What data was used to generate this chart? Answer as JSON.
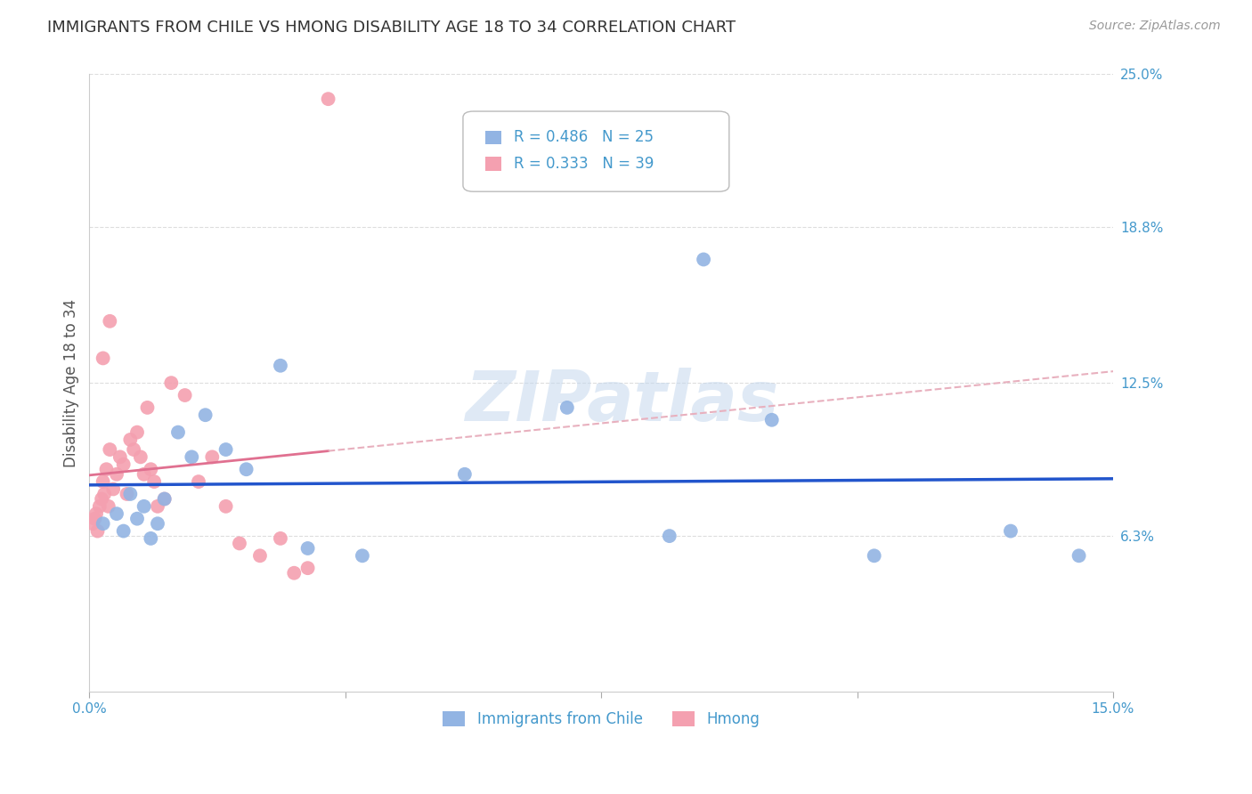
{
  "title": "IMMIGRANTS FROM CHILE VS HMONG DISABILITY AGE 18 TO 34 CORRELATION CHART",
  "source": "Source: ZipAtlas.com",
  "ylabel": "Disability Age 18 to 34",
  "xlim": [
    0.0,
    15.0
  ],
  "ylim": [
    0.0,
    25.0
  ],
  "ytick_labels_right": [
    "6.3%",
    "12.5%",
    "18.8%",
    "25.0%"
  ],
  "ytick_values_right": [
    6.3,
    12.5,
    18.8,
    25.0
  ],
  "watermark": "ZIPatlas",
  "legend_R_blue": "R = 0.486",
  "legend_N_blue": "N = 25",
  "legend_R_pink": "R = 0.333",
  "legend_N_pink": "N = 39",
  "legend_label_blue": "Immigrants from Chile",
  "legend_label_pink": "Hmong",
  "blue_scatter_x": [
    0.2,
    0.4,
    0.5,
    0.6,
    0.7,
    0.8,
    0.9,
    1.0,
    1.1,
    1.3,
    1.5,
    1.7,
    2.0,
    2.3,
    3.2,
    4.0,
    5.5,
    7.0,
    8.5,
    9.0,
    10.0,
    11.5,
    13.5,
    14.5,
    2.8
  ],
  "blue_scatter_y": [
    6.8,
    7.2,
    6.5,
    8.0,
    7.0,
    7.5,
    6.2,
    6.8,
    7.8,
    10.5,
    9.5,
    11.2,
    9.8,
    9.0,
    5.8,
    5.5,
    8.8,
    11.5,
    6.3,
    17.5,
    11.0,
    5.5,
    6.5,
    5.5,
    13.2
  ],
  "pink_scatter_x": [
    0.05,
    0.08,
    0.1,
    0.12,
    0.15,
    0.18,
    0.2,
    0.22,
    0.25,
    0.28,
    0.3,
    0.35,
    0.4,
    0.45,
    0.5,
    0.55,
    0.6,
    0.65,
    0.7,
    0.75,
    0.8,
    0.85,
    0.9,
    0.95,
    1.0,
    1.1,
    1.2,
    1.4,
    1.6,
    1.8,
    2.0,
    2.2,
    2.5,
    2.8,
    3.0,
    3.2,
    3.5,
    0.3,
    0.2
  ],
  "pink_scatter_y": [
    6.8,
    7.0,
    7.2,
    6.5,
    7.5,
    7.8,
    8.5,
    8.0,
    9.0,
    7.5,
    9.8,
    8.2,
    8.8,
    9.5,
    9.2,
    8.0,
    10.2,
    9.8,
    10.5,
    9.5,
    8.8,
    11.5,
    9.0,
    8.5,
    7.5,
    7.8,
    12.5,
    12.0,
    8.5,
    9.5,
    7.5,
    6.0,
    5.5,
    6.2,
    4.8,
    5.0,
    24.0,
    15.0,
    13.5
  ],
  "blue_color": "#92b4e3",
  "pink_color": "#f4a0b0",
  "blue_line_color": "#2255cc",
  "pink_line_color": "#e07090",
  "pink_dash_color": "#e8b0be",
  "background_color": "#ffffff",
  "grid_color": "#dddddd",
  "title_color": "#333333",
  "axis_label_color": "#555555",
  "tick_color": "#4499cc"
}
